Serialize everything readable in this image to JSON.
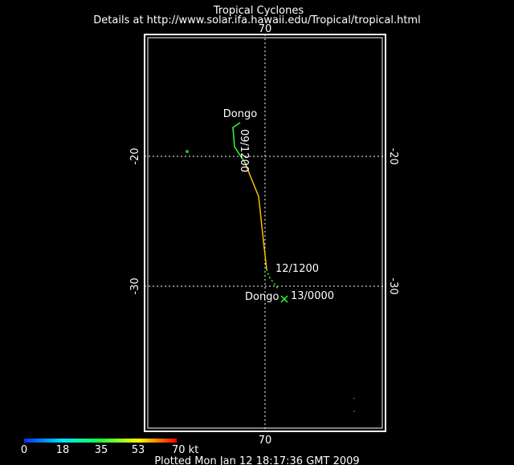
{
  "header": {
    "title": "Tropical Cyclones",
    "subtitle": "Details at http://www.solar.ifa.hawaii.edu/Tropical/tropical.html"
  },
  "map": {
    "lon_top": "70",
    "lon_bottom": "70",
    "lat_left": [
      "-20",
      "-30"
    ],
    "lat_right": [
      "-20",
      "-30"
    ],
    "storm": {
      "name_start": "Dongo",
      "time_start": "09/1200",
      "time_mid": "12/1200",
      "name_end": "Dongo",
      "time_end": "13/0000"
    }
  },
  "colorbar": {
    "labels": [
      "0",
      "18",
      "35",
      "53",
      "70 kt"
    ]
  },
  "footer": {
    "text": "Plotted Mon Jan 12 18:17:36 GMT 2009"
  }
}
